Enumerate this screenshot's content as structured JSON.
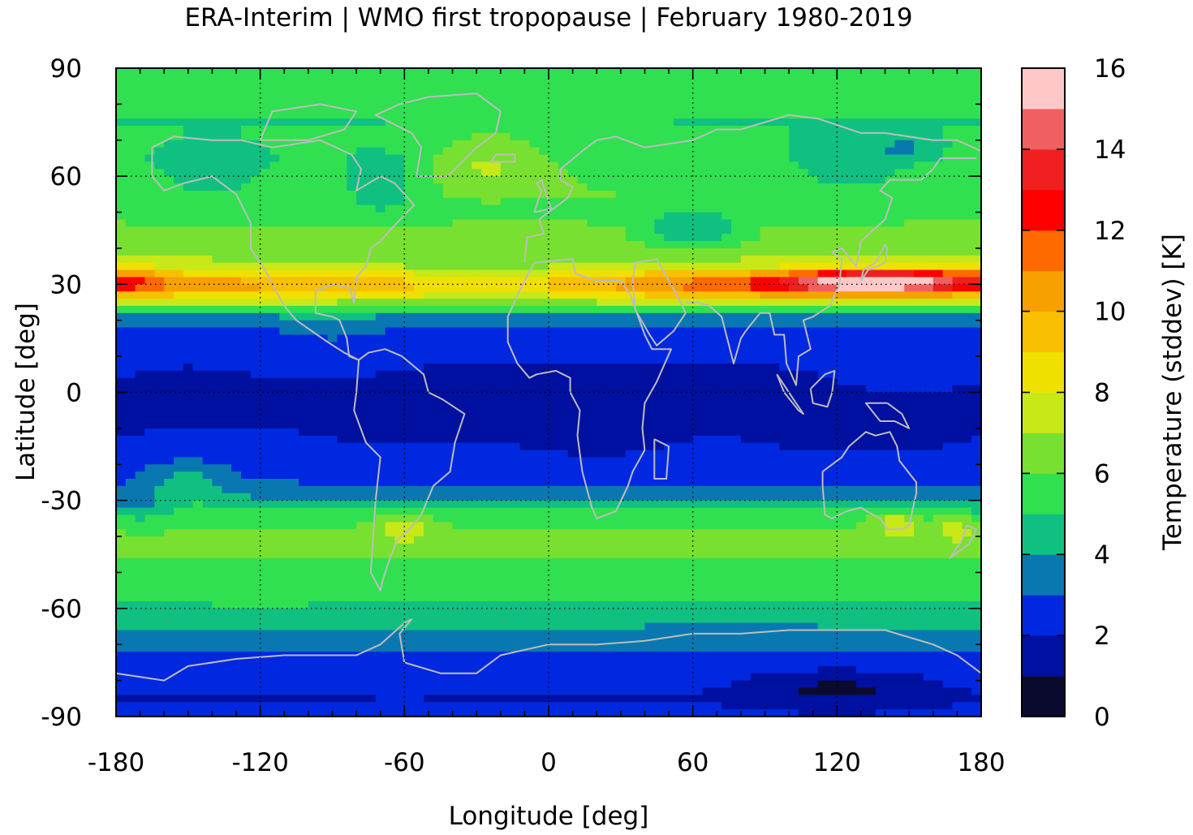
{
  "chart_data": {
    "type": "heatmap",
    "title": "ERA-Interim | WMO first tropopause | February 1980-2019",
    "xlabel": "Longitude [deg]",
    "ylabel": "Latitude [deg]",
    "colorbar_label": "Temperature (stddev) [K]",
    "xlim": [
      -180,
      180
    ],
    "ylim": [
      -90,
      90
    ],
    "xticks": [
      -180,
      -120,
      -60,
      0,
      60,
      120,
      180
    ],
    "yticks": [
      90,
      60,
      30,
      0,
      -30,
      -60,
      -90
    ],
    "grid": true,
    "colorbar": {
      "ticks": [
        0,
        2,
        4,
        6,
        8,
        10,
        12,
        14,
        16
      ],
      "levels": [
        0,
        1,
        2,
        3,
        4,
        5,
        6,
        7,
        8,
        9,
        10,
        11,
        12,
        13,
        14,
        15,
        16
      ],
      "colors": [
        "#0a0a2e",
        "#0010a0",
        "#0028e0",
        "#0a78b0",
        "#10c080",
        "#30e050",
        "#78e030",
        "#c8e818",
        "#f0e000",
        "#f8c000",
        "#f8a000",
        "#ff6a00",
        "#ff0000",
        "#f02020",
        "#f06060",
        "#ffc8c8"
      ]
    },
    "lat_profile": [
      [
        90,
        5.4
      ],
      [
        85,
        5.6
      ],
      [
        80,
        5.8
      ],
      [
        75,
        5.0
      ],
      [
        70,
        5.2
      ],
      [
        65,
        5.4
      ],
      [
        60,
        5.9
      ],
      [
        55,
        6.0
      ],
      [
        50,
        5.6
      ],
      [
        45,
        6.3
      ],
      [
        40,
        6.4
      ],
      [
        35,
        7.4
      ],
      [
        32,
        9.5
      ],
      [
        30,
        10.6
      ],
      [
        28,
        9.6
      ],
      [
        25,
        7.2
      ],
      [
        22,
        4.6
      ],
      [
        20,
        3.2
      ],
      [
        15,
        2.4
      ],
      [
        10,
        2.1
      ],
      [
        5,
        1.9
      ],
      [
        0,
        1.8
      ],
      [
        -5,
        1.9
      ],
      [
        -10,
        2.0
      ],
      [
        -15,
        2.2
      ],
      [
        -20,
        2.6
      ],
      [
        -25,
        3.0
      ],
      [
        -30,
        4.2
      ],
      [
        -35,
        5.8
      ],
      [
        -40,
        6.2
      ],
      [
        -45,
        6.1
      ],
      [
        -50,
        5.6
      ],
      [
        -55,
        5.3
      ],
      [
        -60,
        4.6
      ],
      [
        -65,
        4.0
      ],
      [
        -70,
        3.4
      ],
      [
        -75,
        2.6
      ],
      [
        -80,
        2.3
      ],
      [
        -85,
        2.0
      ],
      [
        -90,
        2.2
      ]
    ],
    "anomalies": [
      {
        "lon": 135,
        "lat": 31,
        "dlon": 28,
        "dlat": 3,
        "amp": 5.0
      },
      {
        "lon": 112,
        "lat": 30,
        "dlon": 35,
        "dlat": 4,
        "amp": 2.6
      },
      {
        "lon": 160,
        "lat": 31,
        "dlon": 25,
        "dlat": 4,
        "amp": 2.4
      },
      {
        "lon": -172,
        "lat": 31,
        "dlon": 15,
        "dlat": 4,
        "amp": 1.6
      },
      {
        "lon": 60,
        "lat": 30,
        "dlon": 30,
        "dlat": 4,
        "amp": 0.8
      },
      {
        "lon": -15,
        "lat": 30,
        "dlon": 40,
        "dlat": 5,
        "amp": -1.3
      },
      {
        "lon": -70,
        "lat": 30,
        "dlon": 35,
        "dlat": 5,
        "amp": -0.8
      },
      {
        "lon": -25,
        "lat": 65,
        "dlon": 25,
        "dlat": 8,
        "amp": 1.6
      },
      {
        "lon": -70,
        "lat": 58,
        "dlon": 20,
        "dlat": 8,
        "amp": -1.5
      },
      {
        "lon": -140,
        "lat": 60,
        "dlon": 30,
        "dlat": 8,
        "amp": -1.3
      },
      {
        "lon": 60,
        "lat": 45,
        "dlon": 20,
        "dlat": 5,
        "amp": -2.2
      },
      {
        "lon": 125,
        "lat": 62,
        "dlon": 25,
        "dlat": 8,
        "amp": -1.4
      },
      {
        "lon": 150,
        "lat": 68,
        "dlon": 12,
        "dlat": 4,
        "amp": -1.2
      },
      {
        "lon": -90,
        "lat": 12,
        "dlon": 30,
        "dlat": 8,
        "amp": 0.7
      },
      {
        "lon": 150,
        "lat": 8,
        "dlon": 30,
        "dlat": 8,
        "amp": 0.6
      },
      {
        "lon": -60,
        "lat": -5,
        "dlon": 30,
        "dlat": 8,
        "amp": -0.7
      },
      {
        "lon": 20,
        "lat": -12,
        "dlon": 30,
        "dlat": 8,
        "amp": -0.6
      },
      {
        "lon": 130,
        "lat": -12,
        "dlon": 40,
        "dlat": 6,
        "amp": -0.5
      },
      {
        "lon": -150,
        "lat": -25,
        "dlon": 15,
        "dlat": 6,
        "amp": 1.6
      },
      {
        "lon": -60,
        "lat": -38,
        "dlon": 10,
        "dlat": 4,
        "amp": 1.8
      },
      {
        "lon": 145,
        "lat": -37,
        "dlon": 8,
        "dlat": 4,
        "amp": 1.8
      },
      {
        "lon": 170,
        "lat": -38,
        "dlon": 8,
        "dlat": 4,
        "amp": 1.6
      },
      {
        "lon": -170,
        "lat": -33,
        "dlon": 15,
        "dlat": 5,
        "amp": -1.0
      },
      {
        "lon": -120,
        "lat": -62,
        "dlon": 40,
        "dlat": 5,
        "amp": 0.5
      },
      {
        "lon": 120,
        "lat": -82,
        "dlon": 35,
        "dlat": 5,
        "amp": -1.4
      }
    ]
  }
}
